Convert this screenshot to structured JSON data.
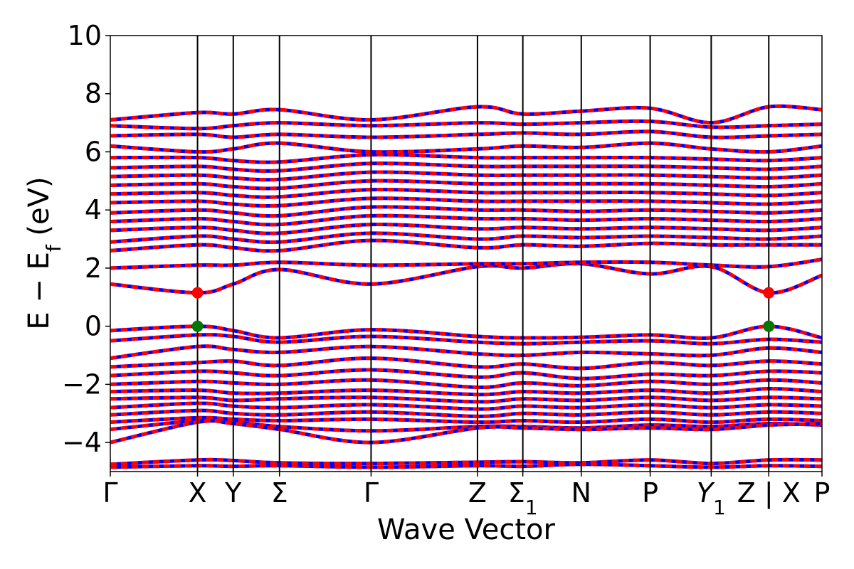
{
  "chart_data": {
    "type": "line",
    "title": "",
    "xlabel": "Wave Vector",
    "ylabel": "E − E_f (eV)",
    "ylim": [
      -5,
      10
    ],
    "yticks": [
      -4,
      -2,
      0,
      2,
      4,
      6,
      8,
      10
    ],
    "ytick_labels": [
      "−4",
      "−2",
      "0",
      "2",
      "4",
      "6",
      "8",
      "10"
    ],
    "kpath": [
      {
        "label": "Γ",
        "sub": "",
        "italic": false,
        "x": 0.0
      },
      {
        "label": "X",
        "sub": "",
        "italic": false,
        "x": 1.0
      },
      {
        "label": "Y",
        "sub": "",
        "italic": false,
        "x": 1.41
      },
      {
        "label": "Σ",
        "sub": "",
        "italic": false,
        "x": 1.94
      },
      {
        "label": "Γ",
        "sub": "",
        "italic": false,
        "x": 2.99
      },
      {
        "label": "Z",
        "sub": "",
        "italic": false,
        "x": 4.21
      },
      {
        "label": "Σ",
        "sub": "1",
        "italic": false,
        "x": 4.73
      },
      {
        "label": "N",
        "sub": "",
        "italic": false,
        "x": 5.4
      },
      {
        "label": "P",
        "sub": "",
        "italic": false,
        "x": 6.19
      },
      {
        "label": "Y",
        "sub": "1",
        "italic": true,
        "x": 6.89
      },
      {
        "label": "Z | X",
        "sub": "",
        "italic": false,
        "x": 7.55
      },
      {
        "label": "P",
        "sub": "",
        "italic": false,
        "x": 8.16
      }
    ],
    "series_styles": [
      {
        "name": "",
        "color": "#0000ff",
        "style": "solid"
      },
      {
        "name": "",
        "color": "#ff0000",
        "style": "dashed"
      }
    ],
    "gap_markers": [
      {
        "kind": "CBM",
        "color": "#ff0000",
        "points": [
          [
            1.0,
            1.15
          ],
          [
            7.55,
            1.15
          ]
        ]
      },
      {
        "kind": "VBM",
        "color": "#007700",
        "points": [
          [
            1.0,
            0.0
          ],
          [
            7.55,
            0.0
          ]
        ]
      }
    ],
    "grid": false,
    "bands": [
      {
        "region": "core",
        "x": [
          0.0,
          1.0,
          1.41,
          1.94,
          2.99,
          4.21,
          4.73,
          5.4,
          6.19,
          6.89,
          7.55,
          8.16
        ],
        "y": [
          -4.85,
          -4.8,
          -4.82,
          -4.8,
          -4.85,
          -4.8,
          -4.82,
          -4.75,
          -4.8,
          -4.85,
          -4.8,
          -4.82
        ]
      },
      {
        "region": "core",
        "x": [
          0.0,
          1.0,
          1.41,
          1.94,
          2.99,
          4.21,
          4.73,
          5.4,
          6.19,
          6.89,
          7.55,
          8.16
        ],
        "y": [
          -4.75,
          -4.6,
          -4.62,
          -4.7,
          -4.72,
          -4.68,
          -4.66,
          -4.7,
          -4.6,
          -4.72,
          -4.6,
          -4.6
        ]
      },
      {
        "region": "valence",
        "x": [
          0.0,
          1.0,
          1.41,
          1.94,
          2.99,
          4.21,
          4.73,
          5.4,
          6.19,
          6.89,
          7.55,
          8.16
        ],
        "y": [
          -0.15,
          0.0,
          -0.15,
          -0.4,
          -0.12,
          -0.35,
          -0.4,
          -0.38,
          -0.3,
          -0.4,
          0.0,
          -0.4
        ]
      },
      {
        "region": "valence",
        "x": [
          0.0,
          1.0,
          1.41,
          1.94,
          2.99,
          4.21,
          4.73,
          5.4,
          6.19,
          6.89,
          7.55,
          8.16
        ],
        "y": [
          -0.5,
          -0.3,
          -0.35,
          -0.55,
          -0.35,
          -0.55,
          -0.6,
          -0.55,
          -0.5,
          -0.6,
          -0.45,
          -0.55
        ]
      },
      {
        "region": "valence",
        "x": [
          0.0,
          1.0,
          1.41,
          1.94,
          2.99,
          4.21,
          4.73,
          5.4,
          6.19,
          6.89,
          7.55,
          8.16
        ],
        "y": [
          -1.1,
          -0.7,
          -0.8,
          -0.9,
          -0.7,
          -0.95,
          -1.0,
          -0.9,
          -0.95,
          -1.0,
          -0.75,
          -0.9
        ]
      },
      {
        "region": "valence",
        "x": [
          0.0,
          1.0,
          1.41,
          1.94,
          2.99,
          4.21,
          4.73,
          5.4,
          6.19,
          6.89,
          7.55,
          8.16
        ],
        "y": [
          -1.4,
          -1.25,
          -1.2,
          -1.35,
          -1.1,
          -1.4,
          -1.3,
          -1.45,
          -1.25,
          -1.35,
          -1.2,
          -1.3
        ]
      },
      {
        "region": "valence",
        "x": [
          0.0,
          1.0,
          1.41,
          1.94,
          2.99,
          4.21,
          4.73,
          5.4,
          6.19,
          6.89,
          7.55,
          8.16
        ],
        "y": [
          -1.7,
          -1.55,
          -1.6,
          -1.7,
          -1.5,
          -1.75,
          -1.6,
          -1.8,
          -1.65,
          -1.7,
          -1.55,
          -1.6
        ]
      },
      {
        "region": "valence",
        "x": [
          0.0,
          1.0,
          1.41,
          1.94,
          2.99,
          4.21,
          4.73,
          5.4,
          6.19,
          6.89,
          7.55,
          8.16
        ],
        "y": [
          -2.0,
          -1.9,
          -1.95,
          -2.0,
          -1.85,
          -2.1,
          -1.95,
          -2.05,
          -1.9,
          -2.0,
          -1.85,
          -1.95
        ]
      },
      {
        "region": "valence",
        "x": [
          0.0,
          1.0,
          1.41,
          1.94,
          2.99,
          4.21,
          4.73,
          5.4,
          6.19,
          6.89,
          7.55,
          8.16
        ],
        "y": [
          -2.25,
          -2.2,
          -2.3,
          -2.3,
          -2.2,
          -2.35,
          -2.25,
          -2.3,
          -2.2,
          -2.3,
          -2.15,
          -2.25
        ]
      },
      {
        "region": "valence",
        "x": [
          0.0,
          1.0,
          1.41,
          1.94,
          2.99,
          4.21,
          4.73,
          5.4,
          6.19,
          6.89,
          7.55,
          8.16
        ],
        "y": [
          -2.5,
          -2.45,
          -2.55,
          -2.5,
          -2.45,
          -2.6,
          -2.5,
          -2.55,
          -2.45,
          -2.55,
          -2.45,
          -2.5
        ]
      },
      {
        "region": "valence",
        "x": [
          0.0,
          1.0,
          1.41,
          1.94,
          2.99,
          4.21,
          4.73,
          5.4,
          6.19,
          6.89,
          7.55,
          8.16
        ],
        "y": [
          -2.8,
          -2.65,
          -2.75,
          -2.8,
          -2.7,
          -2.85,
          -2.75,
          -2.8,
          -2.7,
          -2.8,
          -2.7,
          -2.75
        ]
      },
      {
        "region": "valence",
        "x": [
          0.0,
          1.0,
          1.41,
          1.94,
          2.99,
          4.21,
          4.73,
          5.4,
          6.19,
          6.89,
          7.55,
          8.16
        ],
        "y": [
          -3.05,
          -2.9,
          -3.0,
          -3.05,
          -2.95,
          -3.1,
          -3.0,
          -3.05,
          -2.95,
          -3.05,
          -2.95,
          -3.0
        ]
      },
      {
        "region": "valence",
        "x": [
          0.0,
          1.0,
          1.41,
          1.94,
          2.99,
          4.21,
          4.73,
          5.4,
          6.19,
          6.89,
          7.55,
          8.16
        ],
        "y": [
          -3.3,
          -3.15,
          -3.2,
          -3.25,
          -3.2,
          -3.3,
          -3.25,
          -3.3,
          -3.2,
          -3.3,
          -3.2,
          -3.25
        ]
      },
      {
        "region": "valence",
        "x": [
          0.0,
          1.0,
          1.41,
          1.94,
          2.99,
          4.21,
          4.73,
          5.4,
          6.19,
          6.89,
          7.55,
          8.16
        ],
        "y": [
          -3.55,
          -3.25,
          -3.3,
          -3.45,
          -3.6,
          -3.45,
          -3.45,
          -3.5,
          -3.4,
          -3.45,
          -3.35,
          -3.4
        ]
      },
      {
        "region": "valence",
        "x": [
          0.0,
          1.0,
          1.41,
          1.94,
          2.99,
          4.21,
          4.73,
          5.4,
          6.19,
          6.89,
          7.55,
          8.16
        ],
        "y": [
          -4.0,
          -3.3,
          -3.35,
          -3.55,
          -4.0,
          -3.5,
          -3.5,
          -3.55,
          -3.5,
          -3.55,
          -3.4,
          -3.35
        ]
      },
      {
        "region": "conduction",
        "x": [
          0.0,
          1.0,
          1.41,
          1.94,
          2.99,
          4.21,
          4.73,
          5.4,
          6.19,
          6.89,
          7.55,
          8.16
        ],
        "y": [
          1.45,
          1.15,
          1.45,
          1.95,
          1.45,
          2.05,
          2.0,
          2.15,
          1.8,
          2.05,
          1.15,
          1.75
        ]
      },
      {
        "region": "conduction",
        "x": [
          0.0,
          1.0,
          1.41,
          1.94,
          2.99,
          4.21,
          4.73,
          5.4,
          6.19,
          6.89,
          7.55,
          8.16
        ],
        "y": [
          2.0,
          2.1,
          2.1,
          2.2,
          2.1,
          2.15,
          2.15,
          2.2,
          2.2,
          2.1,
          2.05,
          2.3
        ]
      },
      {
        "region": "conduction",
        "x": [
          0.0,
          1.0,
          1.41,
          1.94,
          2.99,
          4.21,
          4.73,
          5.4,
          6.19,
          6.89,
          7.55,
          8.16
        ],
        "y": [
          2.6,
          2.8,
          2.7,
          2.6,
          2.95,
          2.7,
          2.8,
          2.75,
          2.85,
          2.8,
          2.8,
          2.8
        ]
      },
      {
        "region": "conduction",
        "x": [
          0.0,
          1.0,
          1.41,
          1.94,
          2.99,
          4.21,
          4.73,
          5.4,
          6.19,
          6.89,
          7.55,
          8.16
        ],
        "y": [
          2.9,
          3.1,
          3.0,
          2.9,
          3.2,
          3.0,
          3.1,
          3.05,
          3.1,
          3.05,
          3.0,
          3.1
        ]
      },
      {
        "region": "conduction",
        "x": [
          0.0,
          1.0,
          1.41,
          1.94,
          2.99,
          4.21,
          4.73,
          5.4,
          6.19,
          6.89,
          7.55,
          8.16
        ],
        "y": [
          3.3,
          3.4,
          3.3,
          3.2,
          3.5,
          3.35,
          3.4,
          3.35,
          3.4,
          3.35,
          3.3,
          3.4
        ]
      },
      {
        "region": "conduction",
        "x": [
          0.0,
          1.0,
          1.41,
          1.94,
          2.99,
          4.21,
          4.73,
          5.4,
          6.19,
          6.89,
          7.55,
          8.16
        ],
        "y": [
          3.6,
          3.7,
          3.6,
          3.5,
          3.8,
          3.7,
          3.7,
          3.65,
          3.7,
          3.65,
          3.6,
          3.7
        ]
      },
      {
        "region": "conduction",
        "x": [
          0.0,
          1.0,
          1.41,
          1.94,
          2.99,
          4.21,
          4.73,
          5.4,
          6.19,
          6.89,
          7.55,
          8.16
        ],
        "y": [
          3.9,
          4.0,
          3.9,
          3.8,
          4.1,
          4.0,
          4.0,
          3.95,
          4.0,
          3.95,
          3.9,
          4.0
        ]
      },
      {
        "region": "conduction",
        "x": [
          0.0,
          1.0,
          1.41,
          1.94,
          2.99,
          4.21,
          4.73,
          5.4,
          6.19,
          6.89,
          7.55,
          8.16
        ],
        "y": [
          4.25,
          4.3,
          4.2,
          4.15,
          4.4,
          4.3,
          4.3,
          4.3,
          4.3,
          4.25,
          4.2,
          4.3
        ]
      },
      {
        "region": "conduction",
        "x": [
          0.0,
          1.0,
          1.41,
          1.94,
          2.99,
          4.21,
          4.73,
          5.4,
          6.19,
          6.89,
          7.55,
          8.16
        ],
        "y": [
          4.55,
          4.6,
          4.5,
          4.45,
          4.7,
          4.6,
          4.6,
          4.6,
          4.6,
          4.55,
          4.5,
          4.6
        ]
      },
      {
        "region": "conduction",
        "x": [
          0.0,
          1.0,
          1.41,
          1.94,
          2.99,
          4.21,
          4.73,
          5.4,
          6.19,
          6.89,
          7.55,
          8.16
        ],
        "y": [
          4.85,
          4.9,
          4.8,
          4.75,
          5.0,
          4.9,
          4.9,
          4.9,
          4.9,
          4.85,
          4.8,
          4.9
        ]
      },
      {
        "region": "conduction",
        "x": [
          0.0,
          1.0,
          1.41,
          1.94,
          2.99,
          4.21,
          4.73,
          5.4,
          6.19,
          6.89,
          7.55,
          8.16
        ],
        "y": [
          5.15,
          5.2,
          5.1,
          5.05,
          5.3,
          5.2,
          5.2,
          5.2,
          5.2,
          5.15,
          5.1,
          5.2
        ]
      },
      {
        "region": "conduction",
        "x": [
          0.0,
          1.0,
          1.41,
          1.94,
          2.99,
          4.21,
          4.73,
          5.4,
          6.19,
          6.89,
          7.55,
          8.16
        ],
        "y": [
          5.45,
          5.5,
          5.4,
          5.35,
          5.6,
          5.5,
          5.5,
          5.5,
          5.5,
          5.45,
          5.4,
          5.5
        ]
      },
      {
        "region": "conduction",
        "x": [
          0.0,
          1.0,
          1.41,
          1.94,
          2.99,
          4.21,
          4.73,
          5.4,
          6.19,
          6.89,
          7.55,
          8.16
        ],
        "y": [
          5.8,
          5.8,
          5.7,
          5.65,
          5.9,
          5.8,
          5.8,
          5.8,
          5.8,
          5.75,
          5.7,
          5.8
        ]
      },
      {
        "region": "conduction",
        "x": [
          0.0,
          1.0,
          1.41,
          1.94,
          2.99,
          4.21,
          4.73,
          5.4,
          6.19,
          6.89,
          7.55,
          8.16
        ],
        "y": [
          6.2,
          6.0,
          6.1,
          6.3,
          6.0,
          6.1,
          6.2,
          6.15,
          6.3,
          6.1,
          6.0,
          6.2
        ]
      },
      {
        "region": "conduction",
        "x": [
          0.0,
          1.0,
          1.41,
          1.94,
          2.99,
          4.21,
          4.73,
          5.4,
          6.19,
          6.89,
          7.55,
          8.16
        ],
        "y": [
          6.55,
          6.6,
          6.5,
          6.6,
          6.5,
          6.6,
          6.65,
          6.6,
          6.7,
          6.5,
          6.55,
          6.6
        ]
      },
      {
        "region": "conduction",
        "x": [
          0.0,
          1.0,
          1.41,
          1.94,
          2.99,
          4.21,
          4.73,
          5.4,
          6.19,
          6.89,
          7.55,
          8.16
        ],
        "y": [
          6.9,
          6.8,
          6.9,
          7.0,
          6.9,
          7.0,
          6.95,
          7.0,
          7.05,
          6.85,
          6.9,
          6.95
        ]
      },
      {
        "region": "conduction",
        "x": [
          0.0,
          1.0,
          1.41,
          1.94,
          2.99,
          4.21,
          4.73,
          5.4,
          6.19,
          6.89,
          7.55,
          8.16
        ],
        "y": [
          7.1,
          7.35,
          7.3,
          7.45,
          7.1,
          7.55,
          7.3,
          7.4,
          7.5,
          7.0,
          7.55,
          7.45
        ]
      }
    ]
  }
}
